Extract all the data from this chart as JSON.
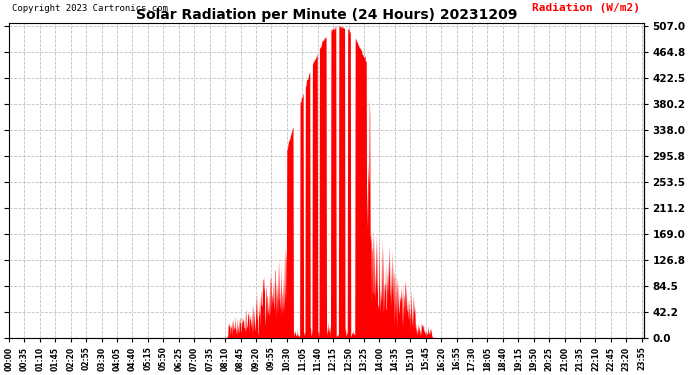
{
  "title": "Solar Radiation per Minute (24 Hours) 20231209",
  "radiation_label": "Radiation (W/m2)",
  "copyright": "Copyright 2023 Cartronics.com",
  "fill_color": "#FF0000",
  "background_color": "#FFFFFF",
  "grid_color": "#BBBBBB",
  "yticks": [
    0.0,
    42.2,
    84.5,
    126.8,
    169.0,
    211.2,
    253.5,
    295.8,
    338.0,
    380.2,
    422.5,
    464.8,
    507.0
  ],
  "ymax": 507.0,
  "ymin": 0.0,
  "total_minutes": 1440
}
